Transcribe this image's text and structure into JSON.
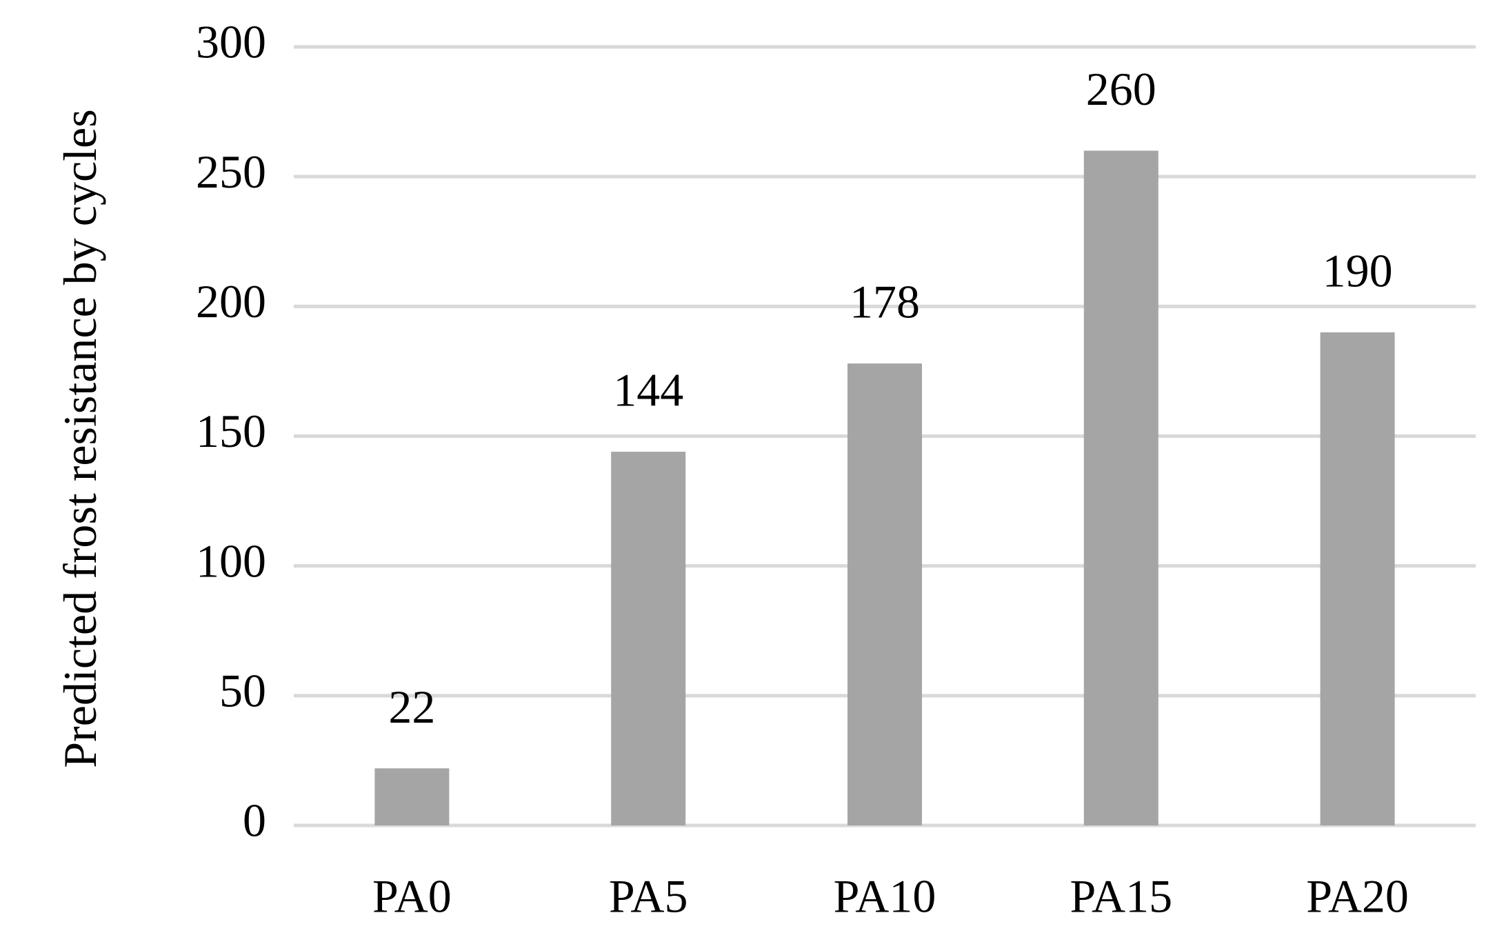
{
  "chart_data": {
    "type": "bar",
    "y_label": "Predicted frost resistance by cycles",
    "categories": [
      "PA0",
      "PA5",
      "PA10",
      "PA15",
      "PA20"
    ],
    "values": [
      22,
      144,
      178,
      260,
      190
    ],
    "color": "#a5a5a5",
    "ylim": [
      0,
      300
    ],
    "yticks": [
      0,
      50,
      100,
      150,
      200,
      250,
      300
    ],
    "grid": true
  }
}
